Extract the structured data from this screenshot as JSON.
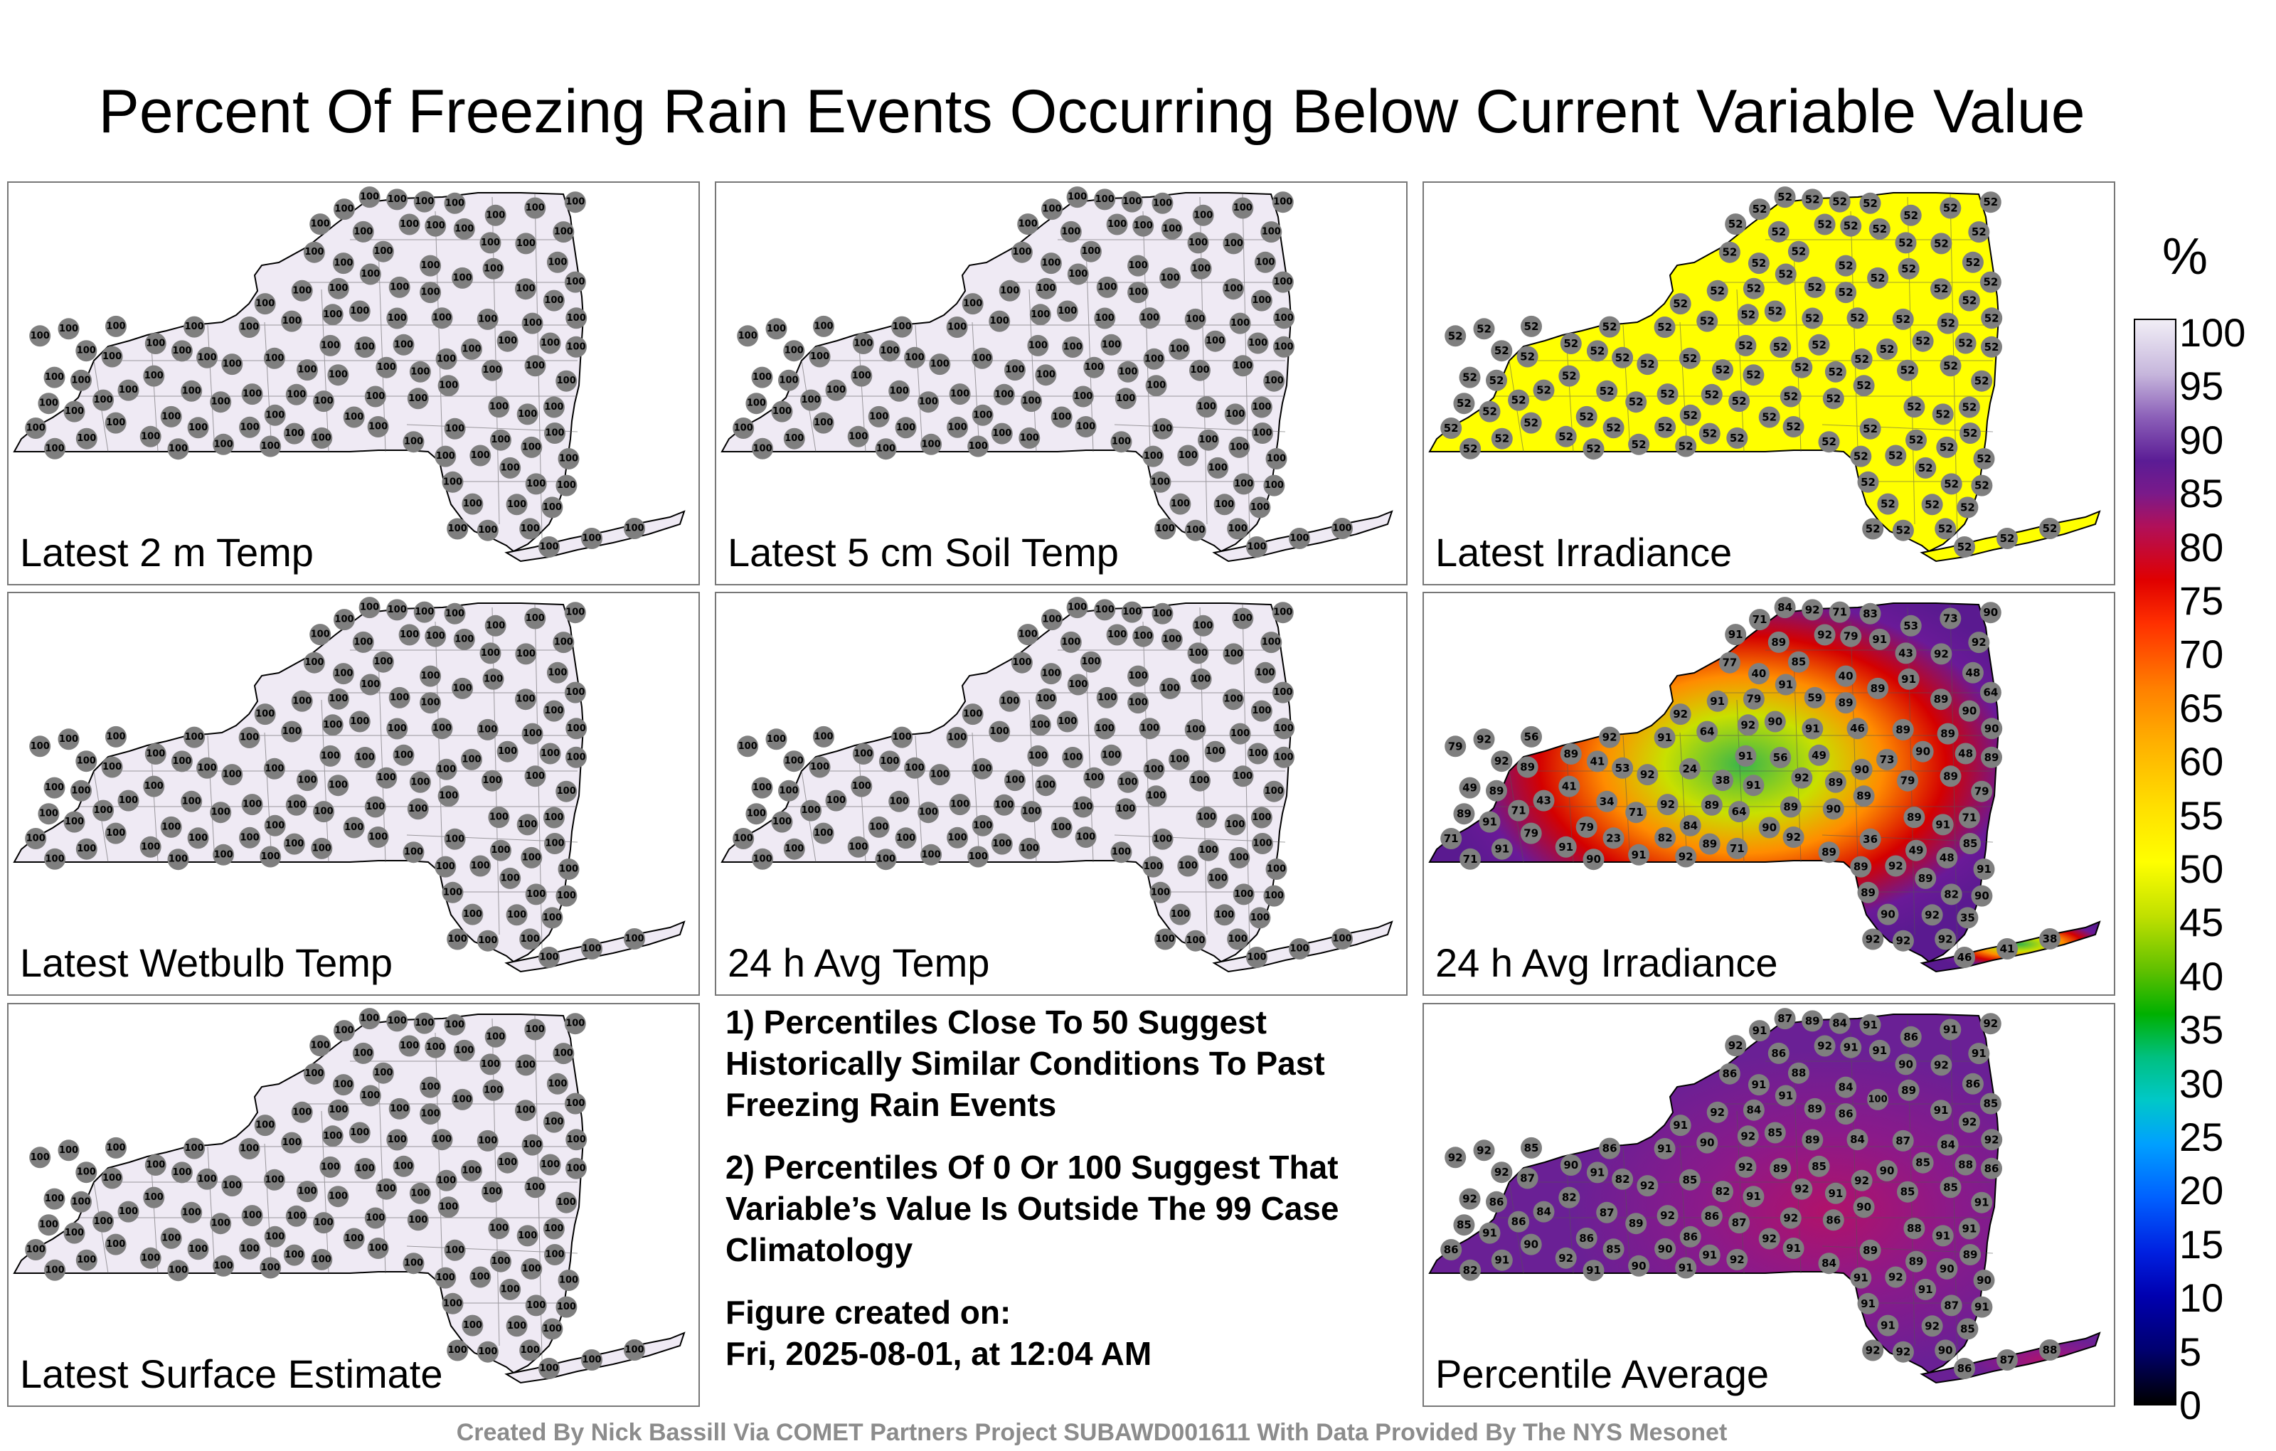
{
  "title": "Percent Of Freezing Rain Events Occurring Below Current Variable Value",
  "panels": [
    {
      "label": "Latest 2 m Temp",
      "fill": "#efeaf4",
      "style": "uniform",
      "value": "100"
    },
    {
      "label": "Latest 5 cm Soil Temp",
      "fill": "#efeaf4",
      "style": "uniform",
      "value": "100"
    },
    {
      "label": "Latest Irradiance",
      "fill": "#ffff00",
      "style": "uniform",
      "value": "52"
    },
    {
      "label": "Latest Wetbulb Temp",
      "fill": "#efeaf4",
      "style": "uniform",
      "value": "100"
    },
    {
      "label": "24 h Avg Temp",
      "fill": "#efeaf4",
      "style": "uniform",
      "value": "100"
    },
    {
      "label": "24 h Avg Irradiance",
      "fill": "#5a1a90",
      "style": "gradient-irr",
      "values": [
        "92",
        "92",
        "92",
        "92",
        "91",
        "91",
        "91",
        "92",
        "90",
        "90",
        "89",
        "89",
        "91",
        "92",
        "91",
        "90",
        "89",
        "92",
        "90",
        "91",
        "92",
        "91",
        "89",
        "79",
        "71",
        "85",
        "82",
        "79",
        "64",
        "56",
        "89",
        "89",
        "84",
        "89",
        "90",
        "89",
        "89",
        "89",
        "71",
        "79",
        "71",
        "53",
        "49",
        "43",
        "46",
        "41",
        "38",
        "36",
        "89",
        "77",
        "64",
        "48",
        "48",
        "24",
        "23",
        "40",
        "59",
        "48",
        "34",
        "35",
        "40",
        "71",
        "49",
        "41",
        "73",
        "83",
        "90",
        "73",
        "89",
        "91",
        "92",
        "92",
        "92",
        "79",
        "71"
      ]
    },
    {
      "label": "",
      "fill": "",
      "style": "notes"
    },
    {
      "label": "Latest Surface Estimate",
      "fill": "#efeaf4",
      "style": "uniform",
      "value": "100"
    },
    {
      "label": "Percentile Average",
      "fill": "#6a2095",
      "style": "gradient-avg",
      "values": [
        "92",
        "92",
        "92",
        "92",
        "91",
        "92",
        "91",
        "92",
        "86",
        "92",
        "92",
        "91",
        "91",
        "92",
        "92",
        "91",
        "91",
        "91",
        "92",
        "89",
        "91",
        "91",
        "90",
        "91",
        "91",
        "89",
        "90",
        "91",
        "90",
        "89",
        "88",
        "87",
        "86",
        "85",
        "85",
        "84",
        "86",
        "87",
        "86",
        "85",
        "86",
        "86",
        "85",
        "84",
        "84",
        "82",
        "82",
        "89",
        "90",
        "86",
        "87",
        "88",
        "86",
        "85",
        "85",
        "84",
        "89",
        "90",
        "87",
        "85",
        "91",
        "92",
        "92",
        "91",
        "91",
        "91",
        "92",
        "90",
        "100",
        "90"
      ]
    }
  ],
  "notes": {
    "line1": "1) Percentiles Close To 50 Suggest Historically Similar Conditions To Past Freezing Rain Events",
    "line2": "2) Percentiles Of 0 Or 100 Suggest That Variable’s Value Is Outside The 99 Case Climatology",
    "line3a": "Figure created on:",
    "line3b": "Fri, 2025-08-01, at 12:04 AM"
  },
  "colorbar": {
    "unit": "%",
    "ticks": [
      "100",
      "95",
      "90",
      "85",
      "80",
      "75",
      "70",
      "65",
      "60",
      "55",
      "50",
      "45",
      "40",
      "35",
      "30",
      "25",
      "20",
      "15",
      "10",
      "5",
      "0"
    ]
  },
  "credit": "Created By Nick Bassill Via COMET Partners Project SUBAWD001611 With Data Provided By The NYS Mesonet"
}
